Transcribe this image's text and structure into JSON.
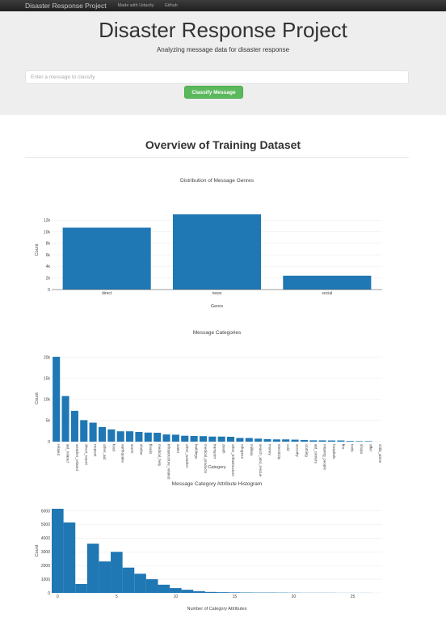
{
  "navbar": {
    "brand": "Disaster Response Project",
    "links": [
      "Made with Udacity",
      "Github"
    ]
  },
  "header": {
    "title": "Disaster Response Project",
    "subtitle": "Analyzing message data for disaster response",
    "input_placeholder": "Enter a message to classify",
    "button_label": "Classify Message"
  },
  "section": {
    "title": "Overview of Training Dataset"
  },
  "colors": {
    "bar": "#1f77b4",
    "button": "#5cb85c",
    "navbar": "#222222",
    "jumbotron": "#eeeeee"
  },
  "chart_data": [
    {
      "type": "bar",
      "title": "Distribution of Message Genres",
      "xlabel": "Genre",
      "ylabel": "Count",
      "categories": [
        "direct",
        "news",
        "social"
      ],
      "values": [
        10700,
        13000,
        2400
      ],
      "ylim": [
        0,
        13700
      ],
      "yticks": [
        0,
        2000,
        4000,
        6000,
        8000,
        10000,
        12000
      ],
      "ytick_labels": [
        "0",
        "2k",
        "4k",
        "6k",
        "8k",
        "10k",
        "12k"
      ],
      "grid": true
    },
    {
      "type": "bar",
      "title": "Message Categories",
      "xlabel": "Category",
      "ylabel": "Count",
      "categories": [
        "related",
        "aid_related",
        "weather_related",
        "direct_report",
        "request",
        "other_aid",
        "food",
        "earthquake",
        "storm",
        "shelter",
        "floods",
        "medical_help",
        "infrastructure_related",
        "water",
        "other_weather",
        "buildings",
        "medical_products",
        "transport",
        "death",
        "other_infrastructure",
        "refugees",
        "military",
        "search_and_rescue",
        "money",
        "electricity",
        "cold",
        "security",
        "clothing",
        "aid_centers",
        "missing_people",
        "hospitals",
        "fire",
        "tools",
        "shops",
        "offer",
        "child_alone"
      ],
      "values": [
        20100,
        10800,
        7300,
        5100,
        4500,
        3450,
        2900,
        2450,
        2450,
        2300,
        2150,
        2100,
        1700,
        1650,
        1400,
        1350,
        1300,
        1200,
        1200,
        1150,
        875,
        860,
        720,
        600,
        530,
        530,
        470,
        400,
        310,
        300,
        280,
        280,
        160,
        120,
        120,
        0
      ],
      "ylim": [
        0,
        20500
      ],
      "yticks": [
        0,
        5000,
        10000,
        15000,
        20000
      ],
      "ytick_labels": [
        "0",
        "5k",
        "10k",
        "15k",
        "20k"
      ],
      "grid": true
    },
    {
      "type": "bar",
      "title": "Message Category Attribute Histogram",
      "xlabel": "Number of Category Attributes",
      "ylabel": "Count",
      "bin_starts": [
        0,
        1,
        2,
        3,
        4,
        5,
        6,
        7,
        8,
        9,
        10,
        11,
        12,
        13,
        14,
        15,
        16,
        17,
        18,
        19,
        20,
        21,
        22,
        23,
        24,
        25,
        26,
        27
      ],
      "values": [
        6150,
        5150,
        650,
        3600,
        2300,
        3000,
        1850,
        1400,
        1000,
        600,
        350,
        230,
        130,
        70,
        50,
        40,
        30,
        25,
        25,
        20,
        15,
        10,
        10,
        10,
        5,
        5,
        5,
        0
      ],
      "xlim": [
        -0.5,
        27.5
      ],
      "xticks": [
        0,
        5,
        10,
        15,
        20,
        25
      ],
      "ylim": [
        0,
        6150
      ],
      "yticks": [
        0,
        1000,
        2000,
        3000,
        4000,
        5000,
        6000
      ],
      "ytick_labels": [
        "0",
        "1000",
        "2000",
        "3000",
        "4000",
        "5000",
        "6000"
      ],
      "grid": true
    }
  ]
}
